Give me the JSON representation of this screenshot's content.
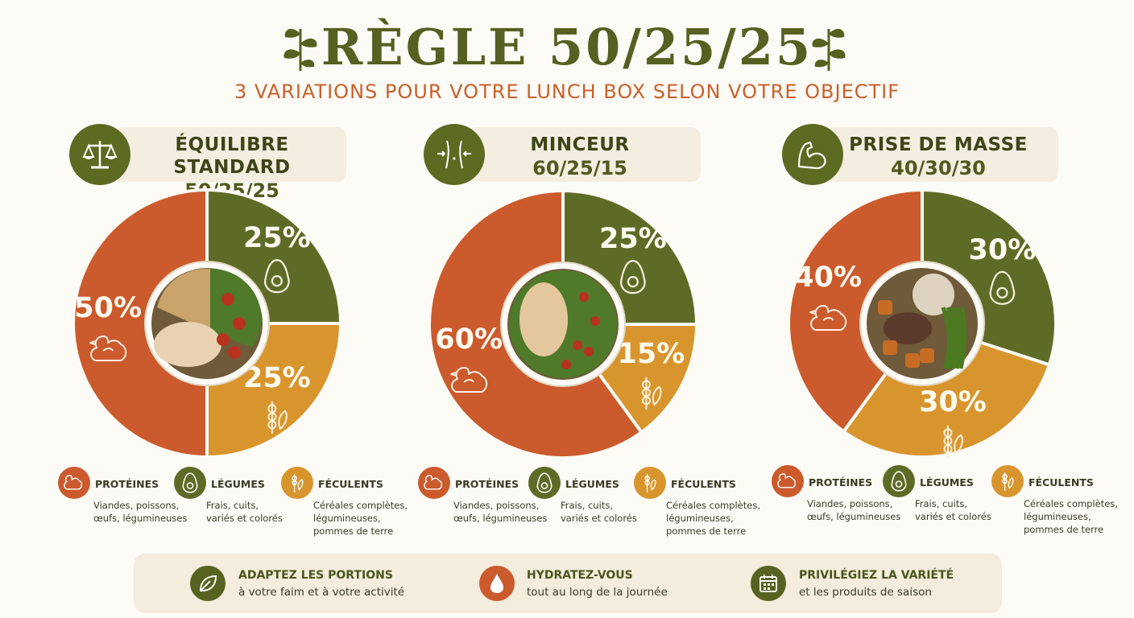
{
  "title": "RÈGLE 50/25/25",
  "subtitle": "3 VARIATIONS POUR VOTRE LUNCH BOX SELON VOTRE OBJECTIF",
  "colors": {
    "proteins": "#cb5a2c",
    "vegetables": "#5e6b27",
    "starches": "#d9952d",
    "accent_dark": "#556021",
    "accent_orange": "#c9602b"
  },
  "variants": [
    {
      "name": "ÉQUILIBRE STANDARD",
      "ratio": "50/25/25",
      "icon": "scale-icon",
      "dish": "quinoa-chicken-salad-bowl",
      "labels": {
        "proteins": "50%",
        "vegetables": "25%",
        "starches": "25%"
      }
    },
    {
      "name": "MINCEUR",
      "ratio": "60/25/15",
      "icon": "waist-icon",
      "dish": "chicken-salad-bowl",
      "labels": {
        "proteins": "60%",
        "vegetables": "25%",
        "starches": "15%"
      }
    },
    {
      "name": "PRISE DE MASSE",
      "ratio": "40/30/30",
      "icon": "muscle-arm-icon",
      "dish": "beef-potato-beans-bowl",
      "labels": {
        "proteins": "40%",
        "vegetables": "30%",
        "starches": "30%"
      }
    }
  ],
  "chart_data": [
    {
      "type": "pie",
      "title": "ÉQUILIBRE STANDARD 50/25/25",
      "categories": [
        "PROTÉINES",
        "LÉGUMES",
        "FÉCULENTS"
      ],
      "values": [
        50,
        25,
        25
      ]
    },
    {
      "type": "pie",
      "title": "MINCEUR 60/25/15",
      "categories": [
        "PROTÉINES",
        "LÉGUMES",
        "FÉCULENTS"
      ],
      "values": [
        60,
        25,
        15
      ]
    },
    {
      "type": "pie",
      "title": "PRISE DE MASSE 40/30/30",
      "categories": [
        "PROTÉINES",
        "LÉGUMES",
        "FÉCULENTS"
      ],
      "values": [
        40,
        30,
        30
      ]
    }
  ],
  "legend": [
    {
      "label": "PROTÉINES",
      "desc1": "Viandes, poissons,",
      "desc2": "œufs, légumineuses",
      "desc3": "",
      "icon": "chicken-icon"
    },
    {
      "label": "LÉGUMES",
      "desc1": "Frais, cuits,",
      "desc2": "variés et colorés",
      "desc3": "",
      "icon": "avocado-icon"
    },
    {
      "label": "FÉCULENTS",
      "desc1": "Céréales complètes,",
      "desc2": "légumineuses,",
      "desc3": "pommes de terre",
      "icon": "wheat-icon"
    }
  ],
  "tips": [
    {
      "title": "ADAPTEZ LES PORTIONS",
      "desc": "à votre faim et à votre activité",
      "icon": "leaf-icon"
    },
    {
      "title": "HYDRATEZ-VOUS",
      "desc": "tout au long de la journée",
      "icon": "water-drop-icon"
    },
    {
      "title": "PRIVILÉGIEZ LA VARIÉTÉ",
      "desc": "et les produits de saison",
      "icon": "calendar-icon"
    }
  ]
}
